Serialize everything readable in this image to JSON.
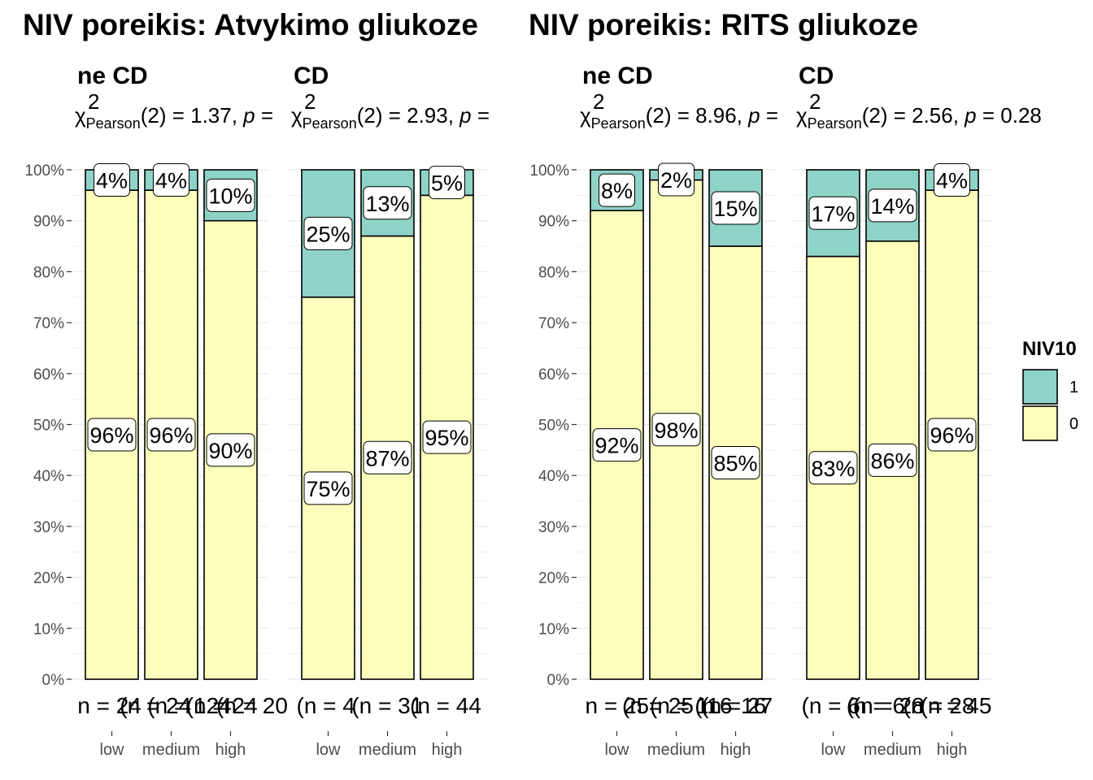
{
  "colors": {
    "level_1": "#8fd3c8",
    "level_0": "#fefebc",
    "outline": "#000000",
    "grid": "#ebebeb"
  },
  "legend": {
    "title": "NIV10",
    "items": [
      {
        "label": "1",
        "color": "#8fd3c8"
      },
      {
        "label": "0",
        "color": "#fefebc"
      }
    ]
  },
  "chart_data": [
    {
      "type": "bar",
      "title": "NIV poreikis: Atvykimo gliukoze",
      "stacked": true,
      "percent": true,
      "ylim": [
        0,
        100
      ],
      "yticks": [
        "0%",
        "10%",
        "20%",
        "30%",
        "40%",
        "50%",
        "60%",
        "70%",
        "80%",
        "90%",
        "100%"
      ],
      "legend_position": "right",
      "facets": [
        {
          "name": "ne CD",
          "stat": {
            "pre": "(2) = 1.37, ",
            "p_tail": " ="
          },
          "categories": [
            "low",
            "medium",
            "high"
          ],
          "series": [
            {
              "name": "1",
              "values": [
                4,
                4,
                10
              ]
            },
            {
              "name": "0",
              "values": [
                96,
                96,
                90
              ]
            }
          ],
          "bar_labels": {
            "1": [
              "4%",
              "4%",
              "10%"
            ],
            "0": [
              "96%",
              "96%",
              "90%"
            ]
          },
          "n_text": [
            {
              "text": "n = 24",
              "cat": 0,
              "dx": -0.65
            },
            {
              "text": "(n = 124",
              "cat": 1,
              "dx": -0.45
            },
            {
              "text": "(n = 20",
              "cat": 2,
              "dx": -0.27
            },
            {
              "text": "(n = 24",
              "cat": 0,
              "dx": 0.15
            },
            {
              "text": "(n = 24",
              "cat": 1,
              "dx": 0.28
            }
          ]
        },
        {
          "name": "CD",
          "stat": {
            "pre": "(2) = 2.93, ",
            "p_tail": " ="
          },
          "categories": [
            "low",
            "medium",
            "high"
          ],
          "series": [
            {
              "name": "1",
              "values": [
                25,
                13,
                5
              ]
            },
            {
              "name": "0",
              "values": [
                75,
                87,
                95
              ]
            }
          ],
          "bar_labels": {
            "1": [
              "25%",
              "13%",
              "5%"
            ],
            "0": [
              "75%",
              "87%",
              "95%"
            ]
          },
          "n_text": [
            {
              "text": "(n = 4",
              "cat": 0,
              "dx": -0.6
            },
            {
              "text": "(n = 31",
              "cat": 1,
              "dx": -0.68
            },
            {
              "text": "(n = 44",
              "cat": 2,
              "dx": -0.7
            }
          ]
        }
      ]
    },
    {
      "type": "bar",
      "title": "NIV poreikis: RITS gliukoze",
      "stacked": true,
      "percent": true,
      "ylim": [
        0,
        100
      ],
      "yticks": [
        "0%",
        "10%",
        "20%",
        "30%",
        "40%",
        "50%",
        "60%",
        "70%",
        "80%",
        "90%",
        "100%"
      ],
      "facets": [
        {
          "name": "ne CD",
          "stat": {
            "pre": "(2) = 8.96, ",
            "p_tail": " ="
          },
          "categories": [
            "low",
            "medium",
            "high"
          ],
          "series": [
            {
              "name": "1",
              "values": [
                8,
                2,
                15
              ]
            },
            {
              "name": "0",
              "values": [
                92,
                98,
                85
              ]
            }
          ],
          "bar_labels": {
            "1": [
              "8%",
              "2%",
              "15%"
            ],
            "0": [
              "92%",
              "98%",
              "85%"
            ]
          },
          "n_text": [
            {
              "text": "n = 25",
              "cat": 0,
              "dx": -0.6
            },
            {
              "text": "(n = 116",
              "cat": 1,
              "dx": -0.5
            },
            {
              "text": "(n = 27",
              "cat": 2,
              "dx": -0.65
            },
            {
              "text": "(n = 25",
              "cat": 0,
              "dx": 0.1
            },
            {
              "text": "(n = 16",
              "cat": 1,
              "dx": 0.35
            }
          ]
        },
        {
          "name": "CD",
          "stat": {
            "pre": "(2) = 2.56, ",
            "p_tail": " = 0.28"
          },
          "categories": [
            "low",
            "medium",
            "high"
          ],
          "series": [
            {
              "name": "1",
              "values": [
                17,
                14,
                4
              ]
            },
            {
              "name": "0",
              "values": [
                83,
                86,
                96
              ]
            }
          ],
          "bar_labels": {
            "1": [
              "17%",
              "14%",
              "4%"
            ],
            "0": [
              "83%",
              "86%",
              "96%"
            ]
          },
          "n_text": [
            {
              "text": "(n = 6",
              "cat": 0,
              "dx": -0.6
            },
            {
              "text": "(n = 28",
              "cat": 1,
              "dx": -0.75
            },
            {
              "text": "(n = 45",
              "cat": 2,
              "dx": -0.6
            },
            {
              "text": "(n = 6",
              "cat": 0,
              "dx": 0.25
            },
            {
              "text": "(n = 28",
              "cat": 1,
              "dx": 0.2
            }
          ]
        }
      ]
    }
  ]
}
